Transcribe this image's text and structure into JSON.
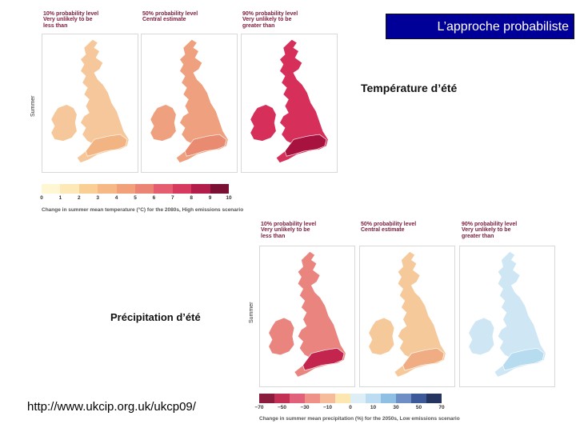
{
  "slide": {
    "title": "L’approche probabiliste",
    "summer_temperature_label": "Température d’été",
    "summer_precipitation_label": "Précipitation d’été",
    "url": "http://www.ukcip.org.uk/ukcp09/"
  },
  "temperature_figure": {
    "side_label": "Summer",
    "panels": [
      {
        "header": "10% probability level\nVery unlikely to be\nless than",
        "fill": "#f6c79a",
        "accent": "#f2b483"
      },
      {
        "header": "50% probability level\nCentral estimate",
        "fill": "#eea07f",
        "accent": "#e88b70"
      },
      {
        "header": "90% probability level\nVery unlikely to be\ngreater than",
        "fill": "#d6305a",
        "accent": "#a8123f"
      }
    ],
    "legend_colors": [
      "#fff7d4",
      "#fde8b8",
      "#f9cf96",
      "#f6b986",
      "#f2a07a",
      "#ec8476",
      "#e45d70",
      "#d63a5e",
      "#b21d4b",
      "#7a1134"
    ],
    "legend_ticks": [
      "0",
      "1",
      "2",
      "3",
      "4",
      "5",
      "6",
      "7",
      "8",
      "9",
      "10"
    ],
    "caption": "Change in summer mean temperature (°C) for the 2080s, High emissions scenario"
  },
  "precipitation_figure": {
    "side_label": "Summer",
    "panels": [
      {
        "header": "10% probability level\nVery unlikely to be\nless than",
        "fill": "#e9857e",
        "accent": "#c3254f"
      },
      {
        "header": "50% probability level\nCentral estimate",
        "fill": "#f6c99b",
        "accent": "#f0ad84"
      },
      {
        "header": "90% probability level\nVery unlikely to be\ngreater than",
        "fill": "#cfe7f4",
        "accent": "#b7dbef"
      }
    ],
    "legend_colors": [
      "#8a1d3d",
      "#c32f55",
      "#e1607a",
      "#ee9186",
      "#f6bb9a",
      "#fde7b0",
      "#ddeef6",
      "#bcdcf1",
      "#8fbfe3",
      "#6e8fc6",
      "#3c5a9a",
      "#26355f"
    ],
    "legend_ticks": [
      "−70",
      "−50",
      "−30",
      "−10",
      "0",
      "10",
      "30",
      "50",
      "70"
    ],
    "caption": "Change in summer mean precipitation (%) for the 2050s, Low emissions scenario"
  }
}
